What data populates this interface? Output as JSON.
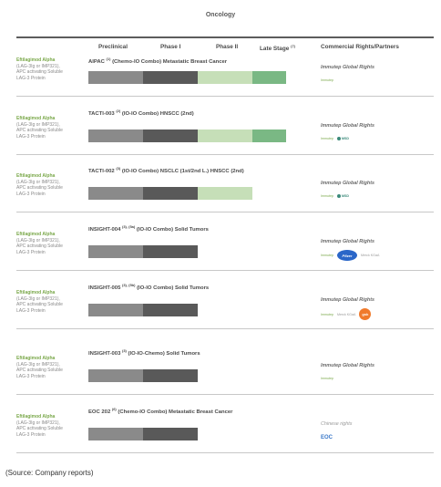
{
  "title": "Oncology",
  "headers": {
    "preclinical": "Preclinical",
    "phase1": "Phase I",
    "phase2": "Phase II",
    "late_stage": "Late Stage",
    "late_stage_note": "(7)",
    "rights": "Commercial Rights/Partners"
  },
  "phase_colors": {
    "preclinical": "#8a8a8a",
    "phase1": "#595959",
    "phase2": "#c6dfb8",
    "late_stage": "#7ab884"
  },
  "drug": {
    "name": "Eftilagimod Alpha",
    "desc1": "(LAG-3Ig or IMP321),",
    "desc2": "APC activating Soluble",
    "desc3": "LAG-3 Protein"
  },
  "programs": [
    {
      "trial_name": "AIPAC",
      "trial_ref": "(1)",
      "trial_desc": "(Chemo-IO Combo) Metastatic Breast Cancer",
      "progress_phases": 4,
      "rights": "Immutep Global Rights",
      "partners": [
        "immutep"
      ]
    },
    {
      "trial_name": "TACTI-003",
      "trial_ref": "(2)",
      "trial_desc": "(IO-IO Combo) HNSCC (2nd)",
      "progress_phases": 4,
      "rights": "Immutep Global Rights",
      "partners": [
        "immutep",
        "merck"
      ]
    },
    {
      "trial_name": "TACTI-002",
      "trial_ref": "(3)",
      "trial_desc": "(IO-IO Combo) NSCLC (1st/2nd L.) HNSCC (2nd)",
      "progress_phases": 3,
      "rights": "Immutep Global Rights",
      "partners": [
        "immutep",
        "merck"
      ]
    },
    {
      "trial_name": "INSIGHT-004",
      "trial_ref": "(3), (5a)",
      "trial_desc": "(IO-IO Combo) Solid Tumors",
      "progress_phases": 2,
      "rights": "Immutep Global Rights",
      "partners": [
        "immutep",
        "pfizer",
        "merck-kgaa"
      ]
    },
    {
      "trial_name": "INSIGHT-005",
      "trial_ref": "(3), (5b)",
      "trial_desc": "(IO-IO Combo) Solid Tumors",
      "progress_phases": 2,
      "rights": "Immutep Global Rights",
      "partners": [
        "immutep",
        "merck-kgaa",
        "gsk"
      ]
    },
    {
      "trial_name": "INSIGHT-003",
      "trial_ref": "(3)",
      "trial_desc": "(IO-IO-Chemo) Solid Tumors",
      "progress_phases": 2,
      "rights": "Immutep Global Rights",
      "partners": [
        "immutep"
      ]
    },
    {
      "trial_name": "EOC 202",
      "trial_ref": "(6)",
      "trial_desc": "(Chemo-IO Combo) Metastatic Breast Cancer",
      "progress_phases": 2,
      "rights": "Chinese rights",
      "partners": [
        "eoc"
      ]
    }
  ],
  "partner_labels": {
    "immutep": "Immutep",
    "merck": "MSD",
    "pfizer": "Pfizer",
    "merck-kgaa": "Merck KGaA",
    "gsk": "gsk",
    "eoc": "EOC"
  },
  "source": "(Source: Company reports)"
}
